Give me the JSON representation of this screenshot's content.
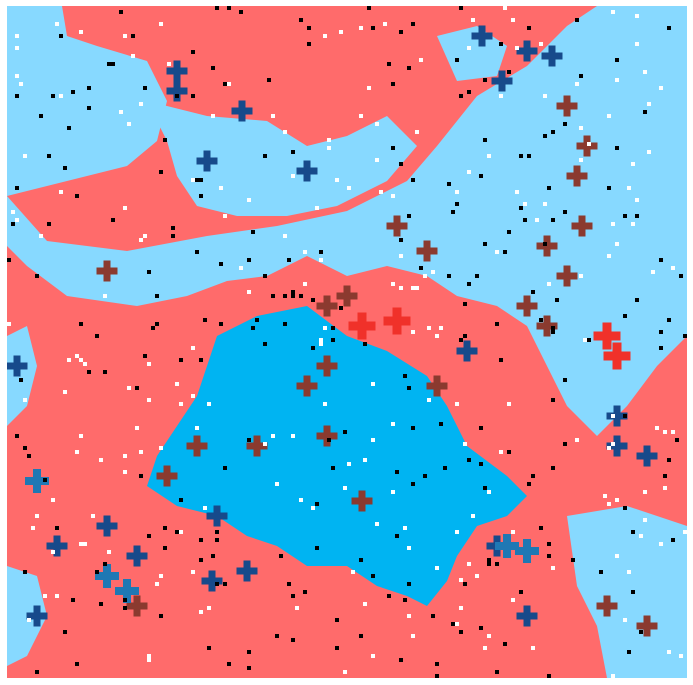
{
  "palette": {
    "background_red": "#ff6b6b",
    "light_blue_region": "#87d9ff",
    "bright_blue_region": "#00b4f2",
    "dark_red_cluster": "#8b3a2f",
    "bright_red_cluster": "#f0312a",
    "navy_cluster": "#174a8b",
    "teal_cluster": "#1f78b4",
    "black_dot": "#000000",
    "white_dot": "#ffffff"
  },
  "legend": [],
  "title": ""
}
